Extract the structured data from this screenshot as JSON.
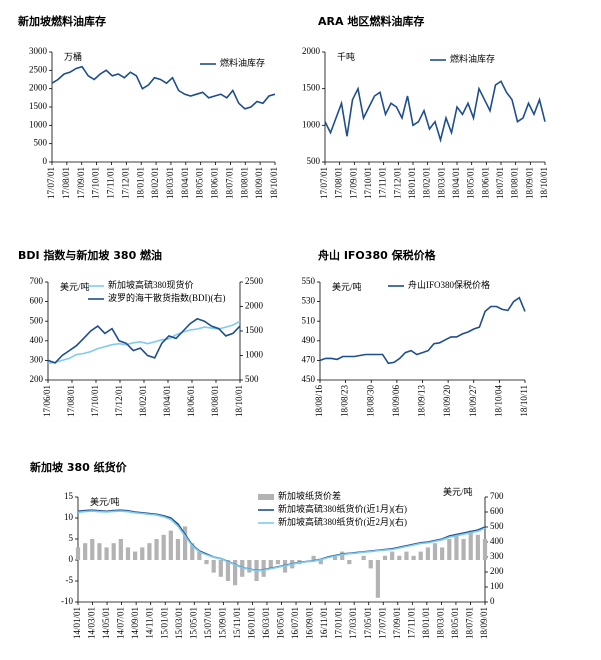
{
  "chart_data": [
    {
      "type": "line",
      "title": "新加坡燃料油库存",
      "unit": "万桶",
      "x_labels": [
        "17/07/01",
        "17/08/01",
        "17/09/01",
        "17/10/01",
        "17/11/01",
        "17/12/01",
        "18/01/01",
        "18/02/01",
        "18/03/01",
        "18/04/01",
        "18/05/01",
        "18/06/01",
        "18/07/01",
        "18/08/01",
        "18/09/01",
        "18/10/01"
      ],
      "series": [
        {
          "name": "燃料油库存",
          "color": "#1f4e8c",
          "values": [
            2150,
            2250,
            2400,
            2450,
            2550,
            2600,
            2350,
            2250,
            2400,
            2500,
            2350,
            2400,
            2300,
            2450,
            2350,
            2000,
            2100,
            2300,
            2250,
            2150,
            2300,
            1950,
            1850,
            1800,
            1850,
            1900,
            1750,
            1800,
            1850,
            1750,
            1950,
            1600,
            1450,
            1500,
            1650,
            1600,
            1800,
            1850
          ]
        }
      ],
      "ylim": [
        0,
        3000
      ],
      "yticks": [
        0,
        500,
        1000,
        1500,
        2000,
        2500,
        3000
      ]
    },
    {
      "type": "line",
      "title": "ARA 地区燃料油库存",
      "unit": "千吨",
      "x_labels": [
        "17/07/01",
        "17/08/01",
        "17/09/01",
        "17/10/01",
        "17/11/01",
        "17/12/01",
        "18/01/01",
        "18/02/01",
        "18/03/01",
        "18/04/01",
        "18/05/01",
        "18/06/01",
        "18/07/01",
        "18/08/01",
        "18/09/01",
        "18/10/01"
      ],
      "series": [
        {
          "name": "燃料油库存",
          "color": "#1f4e8c",
          "values": [
            1050,
            900,
            1100,
            1300,
            850,
            1350,
            1500,
            1100,
            1250,
            1400,
            1450,
            1150,
            1300,
            1250,
            1100,
            1400,
            1000,
            1050,
            1200,
            950,
            1050,
            800,
            1100,
            900,
            1250,
            1150,
            1300,
            1100,
            1500,
            1350,
            1200,
            1550,
            1600,
            1450,
            1350,
            1050,
            1100,
            1300,
            1150,
            1350,
            1050
          ]
        }
      ],
      "ylim": [
        500,
        2000
      ],
      "yticks": [
        500,
        1000,
        1500,
        2000
      ]
    },
    {
      "type": "line",
      "title": "BDI 指数与新加坡 380 燃油",
      "unit": "美元/吨",
      "x_labels": [
        "17/06/01",
        "17/08/01",
        "17/10/01",
        "17/12/01",
        "18/02/01",
        "18/04/01",
        "18/06/01",
        "18/08/01",
        "18/10/01"
      ],
      "series": [
        {
          "name": "新加坡高硫380现货价",
          "color": "#7fcbee",
          "values": [
            285,
            290,
            300,
            310,
            330,
            335,
            345,
            360,
            370,
            380,
            385,
            380,
            390,
            395,
            385,
            395,
            405,
            410,
            430,
            445,
            455,
            460,
            470,
            465,
            460,
            470,
            480,
            500
          ]
        },
        {
          "name": "波罗的海干散货指数(BDI)(右)",
          "color": "#1f4e8c",
          "axis": "y2",
          "values": [
            900,
            850,
            1000,
            1100,
            1200,
            1350,
            1500,
            1600,
            1450,
            1550,
            1300,
            1250,
            1100,
            1150,
            1000,
            950,
            1250,
            1400,
            1350,
            1500,
            1650,
            1750,
            1700,
            1600,
            1550,
            1400,
            1450,
            1600
          ]
        }
      ],
      "ylim": [
        200,
        700
      ],
      "yticks": [
        200,
        300,
        400,
        500,
        600,
        700
      ],
      "y2lim": [
        500,
        2500
      ],
      "y2ticks": [
        500,
        1000,
        1500,
        2000,
        2500
      ]
    },
    {
      "type": "line",
      "title": "舟山 IFO380 保税价格",
      "unit": "美元/吨",
      "x_labels": [
        "18/08/16",
        "18/08/23",
        "18/08/30",
        "18/09/06",
        "18/09/13",
        "18/09/20",
        "18/09/27",
        "18/10/04",
        "18/10/11"
      ],
      "series": [
        {
          "name": "舟山IFO380保税价格",
          "color": "#1f4e8c",
          "values": [
            470,
            472,
            472,
            471,
            474,
            474,
            474,
            475,
            476,
            476,
            476,
            476,
            467,
            468,
            472,
            478,
            480,
            476,
            478,
            480,
            487,
            488,
            491,
            494,
            494,
            497,
            499,
            502,
            504,
            520,
            525,
            525,
            522,
            521,
            530,
            534,
            520
          ]
        }
      ],
      "ylim": [
        450,
        550
      ],
      "yticks": [
        450,
        470,
        490,
        510,
        530,
        550
      ]
    },
    {
      "type": "bar-line",
      "title": "新加坡 380 纸货价",
      "unit": "美元/吨",
      "y2unit": "美元/吨",
      "x_labels": [
        "14/01/01",
        "14/03/01",
        "14/05/01",
        "14/07/01",
        "14/09/01",
        "14/11/01",
        "15/01/01",
        "15/03/01",
        "15/05/01",
        "15/07/01",
        "15/09/01",
        "15/11/01",
        "16/01/01",
        "16/03/01",
        "16/05/01",
        "16/07/01",
        "16/09/01",
        "16/11/01",
        "17/01/01",
        "17/03/01",
        "17/05/01",
        "17/07/01",
        "17/09/01",
        "17/11/01",
        "18/01/01",
        "18/03/01",
        "18/05/01",
        "18/07/01",
        "18/09/01"
      ],
      "series": [
        {
          "name": "新加坡纸货价差",
          "type": "bar",
          "color": "#b3b3b3",
          "values": [
            3,
            4,
            5,
            4,
            3,
            4,
            5,
            3,
            2,
            3,
            4,
            5,
            6,
            7,
            5,
            8,
            4,
            2,
            -1,
            -3,
            -4,
            -5,
            -6,
            -4,
            -3,
            -5,
            -4,
            -2,
            -1,
            -3,
            -2,
            -1,
            0,
            1,
            -1,
            0,
            1,
            2,
            -1,
            0,
            1,
            -2,
            -9,
            1,
            2,
            1,
            2,
            1,
            2,
            3,
            4,
            3,
            5,
            6,
            5,
            7,
            6,
            5
          ]
        },
        {
          "name": "新加坡高硫380纸货价(近1月)(右)",
          "type": "line",
          "color": "#1f4e8c",
          "axis": "y2",
          "values": [
            605,
            610,
            612,
            608,
            605,
            610,
            612,
            608,
            600,
            595,
            590,
            585,
            575,
            560,
            520,
            450,
            380,
            340,
            320,
            300,
            290,
            270,
            250,
            230,
            220,
            210,
            215,
            225,
            235,
            245,
            255,
            265,
            270,
            275,
            285,
            300,
            310,
            320,
            325,
            330,
            335,
            340,
            345,
            350,
            355,
            365,
            375,
            385,
            395,
            400,
            410,
            420,
            440,
            450,
            460,
            470,
            480,
            500
          ]
        },
        {
          "name": "新加坡高硫380纸货价(近2月)(右)",
          "type": "line",
          "color": "#7fcbee",
          "axis": "y2",
          "values": [
            598,
            603,
            606,
            602,
            600,
            604,
            606,
            602,
            595,
            590,
            585,
            580,
            568,
            550,
            505,
            440,
            375,
            335,
            315,
            298,
            288,
            268,
            248,
            228,
            218,
            208,
            212,
            222,
            232,
            242,
            252,
            262,
            268,
            272,
            282,
            296,
            306,
            316,
            322,
            326,
            332,
            336,
            342,
            346,
            350,
            360,
            370,
            380,
            390,
            395,
            405,
            415,
            432,
            442,
            452,
            462,
            472,
            492
          ]
        }
      ],
      "ylim": [
        -10,
        15
      ],
      "yticks": [
        -10,
        -5,
        0,
        5,
        10,
        15
      ],
      "y2lim": [
        0,
        700
      ],
      "y2ticks": [
        0,
        100,
        200,
        300,
        400,
        500,
        600,
        700
      ]
    }
  ]
}
